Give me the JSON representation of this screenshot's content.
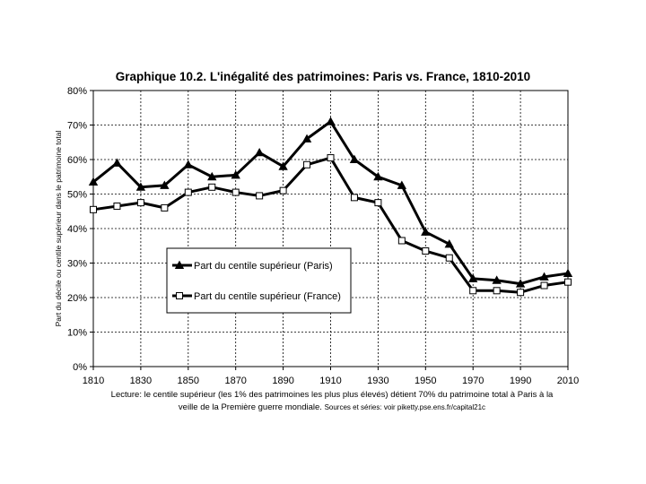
{
  "chart_data": {
    "type": "line",
    "title": "Graphique 10.2. L'inégalité des patrimoines: Paris vs. France, 1810-2010",
    "xlabel": "",
    "ylabel": "Part du décile ou centile supérieur dans le patrimoine total",
    "x": [
      1810,
      1820,
      1830,
      1840,
      1850,
      1860,
      1870,
      1880,
      1890,
      1900,
      1910,
      1920,
      1930,
      1940,
      1950,
      1960,
      1970,
      1980,
      1990,
      2000,
      2010
    ],
    "xlim": [
      1810,
      2010
    ],
    "ylim": [
      0,
      80
    ],
    "x_ticks": [
      "1810",
      "1830",
      "1850",
      "1870",
      "1890",
      "1910",
      "1930",
      "1950",
      "1970",
      "1990",
      "2010"
    ],
    "y_ticks": [
      "0%",
      "10%",
      "20%",
      "30%",
      "40%",
      "50%",
      "60%",
      "70%",
      "80%"
    ],
    "grid": true,
    "legend_position": "left-center",
    "series": [
      {
        "name": "Part du centile supérieur (Paris)",
        "marker": "triangle-filled",
        "color": "#000000",
        "values": [
          53.5,
          59,
          52,
          52.5,
          58.5,
          55,
          55.5,
          62,
          58,
          66,
          71,
          60,
          55,
          52.5,
          39,
          35.5,
          25.5,
          25,
          24,
          26,
          27
        ]
      },
      {
        "name": "Part du centile supérieur (France)",
        "marker": "square-open",
        "color": "#000000",
        "values": [
          45.5,
          46.5,
          47.5,
          46,
          50.5,
          52,
          50.5,
          49.5,
          51,
          58.5,
          60.5,
          49,
          47.5,
          36.5,
          33.5,
          31.5,
          22,
          22,
          21.5,
          23.5,
          24.5
        ]
      }
    ]
  },
  "caption": {
    "line1": "Lecture: le centile supérieur (les 1% des patrimoines les plus plus élevés) détient 70% du patrimoine total à Paris à la",
    "line2": "veille de la Première guerre mondiale.",
    "sources": "Sources et séries: voir piketty.pse.ens.fr/capital21c"
  }
}
